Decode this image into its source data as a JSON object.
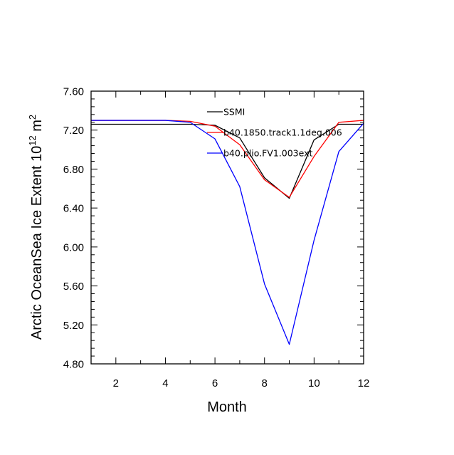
{
  "chart_data": {
    "type": "line",
    "title": "",
    "xlabel": "Month",
    "ylabel": {
      "prefix": "Arctic OceanSea Ice Extent 10",
      "exp1": "12",
      "mid": " m",
      "exp2": "2"
    },
    "xlim": [
      1,
      12
    ],
    "ylim": [
      4.8,
      7.6
    ],
    "xticks": [
      2,
      4,
      6,
      8,
      10,
      12
    ],
    "xtick_labels": [
      "2",
      "4",
      "6",
      "8",
      "10",
      "12"
    ],
    "yticks": [
      4.8,
      5.2,
      5.6,
      6.0,
      6.4,
      6.8,
      7.2,
      7.6
    ],
    "ytick_labels": [
      "4.80",
      "5.20",
      "5.60",
      "6.00",
      "6.40",
      "6.80",
      "7.20",
      "7.60"
    ],
    "legend_position": "top-center",
    "x": [
      1,
      2,
      3,
      4,
      5,
      6,
      7,
      8,
      9,
      10,
      11,
      12
    ],
    "series": [
      {
        "name": "SSMI",
        "color": "#000000",
        "values": [
          7.26,
          7.26,
          7.26,
          7.26,
          7.26,
          7.25,
          7.12,
          6.71,
          6.5,
          7.1,
          7.26,
          7.26
        ]
      },
      {
        "name": "b40.1850.track1.1deg.006",
        "color": "#ff0000",
        "values": [
          7.3,
          7.3,
          7.3,
          7.3,
          7.29,
          7.24,
          7.05,
          6.69,
          6.51,
          6.93,
          7.28,
          7.3
        ]
      },
      {
        "name": "b40.plio.FV1.003ext",
        "color": "#0000ff",
        "values": [
          7.3,
          7.3,
          7.3,
          7.3,
          7.28,
          7.11,
          6.62,
          5.62,
          5.0,
          6.07,
          6.98,
          7.27
        ]
      }
    ]
  }
}
